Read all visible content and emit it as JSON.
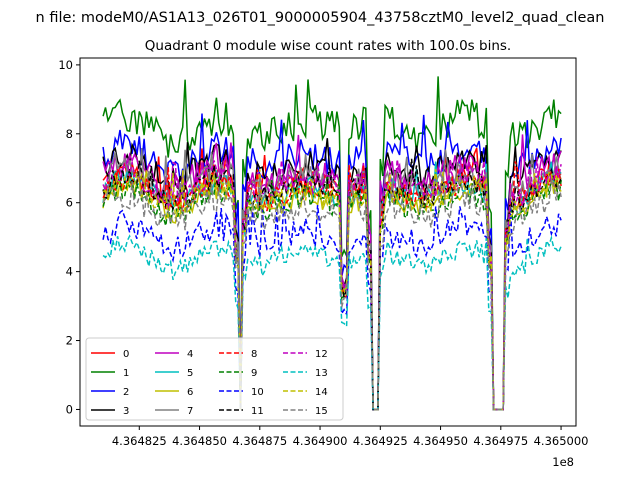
{
  "suptitle": "n file: modeM0/AS1A13_026T01_9000005904_43758cztM0_level2_quad_clean",
  "chart_data": {
    "type": "line",
    "title": "Quadrant 0 module wise count rates with 100.0s bins.",
    "xlabel": "",
    "ylabel": "",
    "x_scale_label": "1e8",
    "xlim": [
      436480040,
      436500620
    ],
    "ylim": [
      -0.48,
      10.2
    ],
    "x_ticks": [
      436482500,
      436485000,
      436487500,
      436490000,
      436492500,
      436495000,
      436497500,
      436500000
    ],
    "x_tick_labels": [
      "4.364825",
      "4.364850",
      "4.364875",
      "4.364900",
      "4.364925",
      "4.364950",
      "4.364975",
      "4.365000"
    ],
    "y_ticks": [
      0,
      2,
      4,
      6,
      8,
      10
    ],
    "y_tick_labels": [
      "0",
      "2",
      "4",
      "6",
      "8",
      "10"
    ],
    "grid": false,
    "legend_position": "lower-left",
    "legend_columns": 4,
    "segments": [
      {
        "x0": 436481000,
        "x1": 436486600
      },
      {
        "x0": 436486800,
        "x1": 436492000
      },
      {
        "x0": 436492600,
        "x1": 436497100
      },
      {
        "x0": 436497700,
        "x1": 436499500
      },
      {
        "x0": 436499500,
        "x1": 436500000
      }
    ],
    "gaps": [
      {
        "start": 436486600,
        "end": 436486800
      },
      {
        "start": 436492100,
        "end": 436492500
      },
      {
        "start": 436497100,
        "end": 436497700
      }
    ],
    "series": [
      {
        "name": "0",
        "color": "#ff0000",
        "dash": "solid",
        "level": 6.5,
        "amp": 0.35,
        "peak": 7.6
      },
      {
        "name": "1",
        "color": "#008000",
        "dash": "solid",
        "level": 8.2,
        "amp": 0.55,
        "peak": 9.7
      },
      {
        "name": "2",
        "color": "#0000ff",
        "dash": "solid",
        "level": 7.3,
        "amp": 0.45,
        "peak": 8.6
      },
      {
        "name": "3",
        "color": "#000000",
        "dash": "solid",
        "level": 7.0,
        "amp": 0.4,
        "peak": 7.9
      },
      {
        "name": "4",
        "color": "#bf00bf",
        "dash": "solid",
        "level": 6.8,
        "amp": 0.4,
        "peak": 8.0
      },
      {
        "name": "5",
        "color": "#00bfbf",
        "dash": "solid",
        "level": 6.3,
        "amp": 0.35,
        "peak": 7.2
      },
      {
        "name": "6",
        "color": "#bfbf00",
        "dash": "solid",
        "level": 6.1,
        "amp": 0.35,
        "peak": 7.0
      },
      {
        "name": "7",
        "color": "#808080",
        "dash": "solid",
        "level": 6.6,
        "amp": 0.4,
        "peak": 7.6
      },
      {
        "name": "8",
        "color": "#ff0000",
        "dash": "dashed",
        "level": 6.3,
        "amp": 0.35,
        "peak": 7.2
      },
      {
        "name": "9",
        "color": "#008000",
        "dash": "dashed",
        "level": 6.0,
        "amp": 0.35,
        "peak": 6.9
      },
      {
        "name": "10",
        "color": "#0000ff",
        "dash": "dashed",
        "level": 5.0,
        "amp": 0.4,
        "peak": 6.0
      },
      {
        "name": "11",
        "color": "#000000",
        "dash": "dashed",
        "level": 6.4,
        "amp": 0.35,
        "peak": 7.3
      },
      {
        "name": "12",
        "color": "#bf00bf",
        "dash": "dashed",
        "level": 6.5,
        "amp": 0.35,
        "peak": 7.4
      },
      {
        "name": "13",
        "color": "#00bfbf",
        "dash": "dashed",
        "level": 4.4,
        "amp": 0.3,
        "peak": 5.0
      },
      {
        "name": "14",
        "color": "#bfbf00",
        "dash": "dashed",
        "level": 6.2,
        "amp": 0.35,
        "peak": 7.0
      },
      {
        "name": "15",
        "color": "#808080",
        "dash": "dashed",
        "level": 5.8,
        "amp": 0.4,
        "peak": 6.8
      }
    ]
  }
}
